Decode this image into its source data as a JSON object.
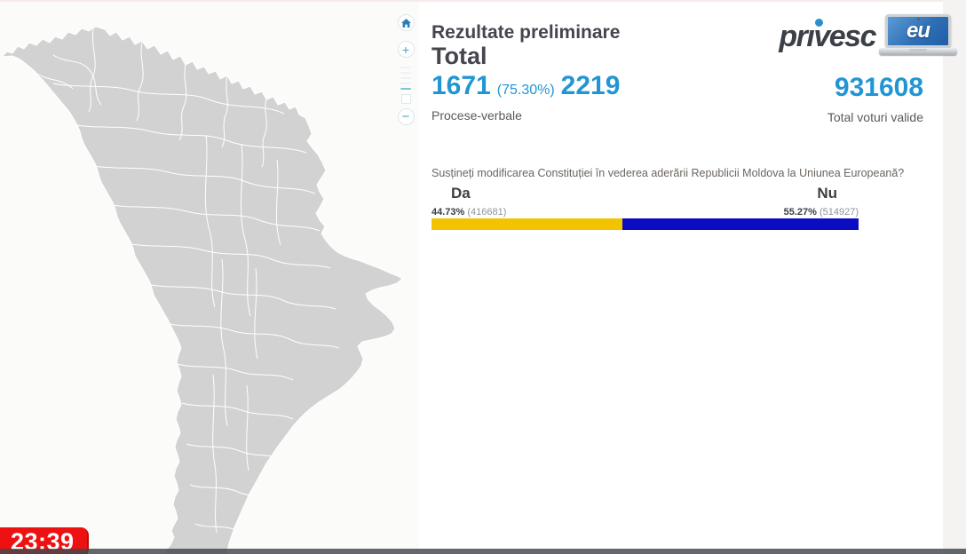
{
  "header": {
    "title": "Rezultate preliminare",
    "scope": "Total",
    "protocols": {
      "processed": "1671",
      "processed_pct": "(75.30%)",
      "total": "2219",
      "label": "Procese-verbale"
    },
    "valid_votes": {
      "value": "931608",
      "label": "Total voturi valide"
    }
  },
  "logo": {
    "name": "privesc",
    "suffix": "eu"
  },
  "referendum": {
    "question": "Susțineți modificarea Constituției în vederea aderării Republicii Moldova la Uniunea Europeană?",
    "options": [
      {
        "label": "Da",
        "pct": "44.73%",
        "votes": "(416681)",
        "value": 44.73,
        "color": "#f2c400"
      },
      {
        "label": "Nu",
        "pct": "55.27%",
        "votes": "(514927)",
        "value": 55.27,
        "color": "#0c0cc2"
      }
    ]
  },
  "map": {
    "region": "Republica Moldova",
    "fill_color": "#d2d2d2",
    "border_color": "#ffffff"
  },
  "map_controls": {
    "home": "home",
    "zoom_in": "+",
    "zoom_out": "−"
  },
  "broadcast": {
    "timestamp": "23:39"
  },
  "colors": {
    "accent_blue": "#2196d3",
    "heading_dark": "#45454e",
    "da_yellow": "#f2c400",
    "nu_blue": "#0c0cc2",
    "badge_red": "#ee1111",
    "bottom_bar": "#42464b"
  }
}
